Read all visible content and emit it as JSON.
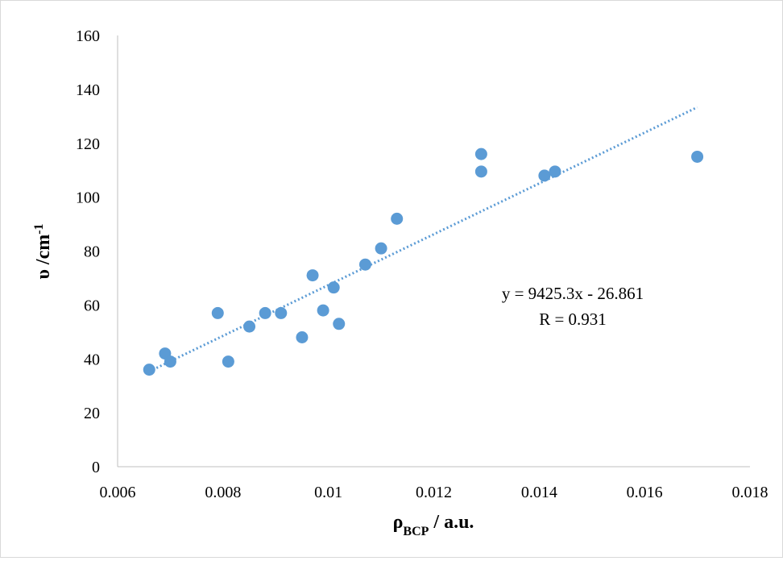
{
  "chart_data": {
    "type": "scatter",
    "title": "",
    "xlabel": "ρ",
    "xlabel_sub": "BCP",
    "xlabel_suffix": " / a.u.",
    "ylabel": "υ /cm",
    "ylabel_sup": "-1",
    "xlim": [
      0.006,
      0.018
    ],
    "ylim": [
      0,
      160
    ],
    "x_ticks": [
      "0.006",
      "0.008",
      "0.01",
      "0.012",
      "0.014",
      "0.016",
      "0.018"
    ],
    "y_ticks": [
      "0",
      "20",
      "40",
      "60",
      "80",
      "100",
      "120",
      "140",
      "160"
    ],
    "grid": false,
    "legend": "none",
    "marker_color": "#5b9bd5",
    "trendline": {
      "type": "linear",
      "slope": 9425.3,
      "intercept": -26.861,
      "x_range": [
        0.0066,
        0.017
      ],
      "style": "dotted",
      "color": "#5b9bd5"
    },
    "annotations": [
      "y = 9425.3x - 26.861",
      "R = 0.931"
    ],
    "points": [
      {
        "x": 0.0066,
        "y": 36
      },
      {
        "x": 0.0069,
        "y": 42
      },
      {
        "x": 0.007,
        "y": 39
      },
      {
        "x": 0.0079,
        "y": 57
      },
      {
        "x": 0.0081,
        "y": 39
      },
      {
        "x": 0.0085,
        "y": 52
      },
      {
        "x": 0.0088,
        "y": 57
      },
      {
        "x": 0.0091,
        "y": 57
      },
      {
        "x": 0.0095,
        "y": 48
      },
      {
        "x": 0.0097,
        "y": 71
      },
      {
        "x": 0.0099,
        "y": 58
      },
      {
        "x": 0.0101,
        "y": 66.5
      },
      {
        "x": 0.0102,
        "y": 53
      },
      {
        "x": 0.0107,
        "y": 75
      },
      {
        "x": 0.011,
        "y": 81
      },
      {
        "x": 0.0113,
        "y": 92
      },
      {
        "x": 0.0129,
        "y": 109.5
      },
      {
        "x": 0.0129,
        "y": 116
      },
      {
        "x": 0.0141,
        "y": 108
      },
      {
        "x": 0.0143,
        "y": 109.5
      },
      {
        "x": 0.017,
        "y": 115
      }
    ]
  }
}
